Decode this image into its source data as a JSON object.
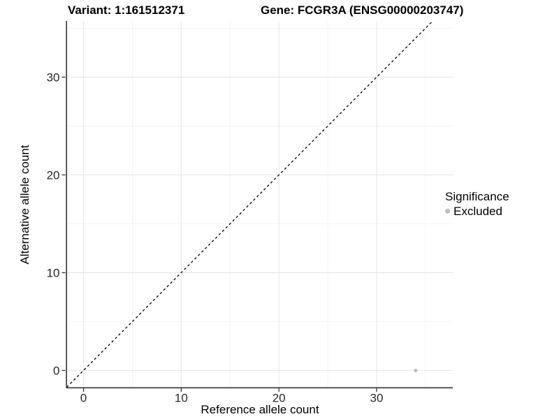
{
  "header": {
    "variant_title": "Variant: 1:161512371",
    "gene_title": "Gene: FCGR3A (ENSG00000203747)"
  },
  "chart_data": {
    "type": "scatter",
    "xlabel": "Reference allele count",
    "ylabel": "Alternative allele count",
    "x_ticks": [
      0,
      10,
      20,
      30
    ],
    "y_ticks": [
      0,
      10,
      20,
      30
    ],
    "x_minor_ticks": [
      5,
      15,
      25,
      35
    ],
    "y_minor_ticks": [
      5,
      15,
      25,
      35
    ],
    "xlim": [
      -1.72,
      37.8
    ],
    "ylim": [
      -1.72,
      35.75
    ],
    "grid": "major and minor, light grey on white",
    "identity_line": {
      "type": "dashed",
      "slope": 1,
      "intercept": 0,
      "color": "#000000"
    },
    "points": [
      {
        "x": 34,
        "y": 0,
        "series": "Excluded"
      }
    ],
    "legend": {
      "title": "Significance",
      "position": "right",
      "items": [
        {
          "label": "Excluded",
          "color": "#bebebe"
        }
      ]
    },
    "colors": {
      "point": "#bebebe",
      "axis_line": "#333333",
      "tick_label": "#262626",
      "grid_major": "#e5e5e5",
      "grid_minor": "#f0f0f0"
    }
  }
}
